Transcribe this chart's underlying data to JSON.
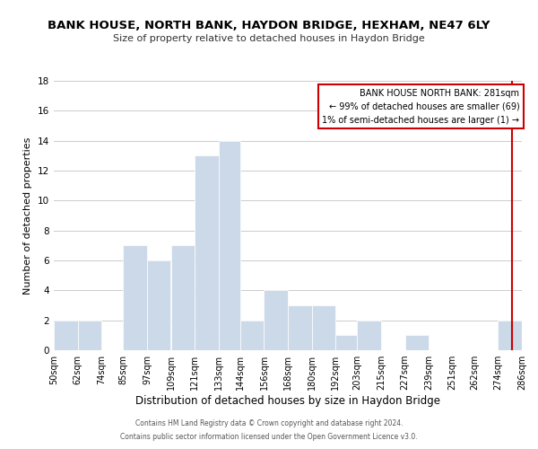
{
  "title": "BANK HOUSE, NORTH BANK, HAYDON BRIDGE, HEXHAM, NE47 6LY",
  "subtitle": "Size of property relative to detached houses in Haydon Bridge",
  "xlabel": "Distribution of detached houses by size in Haydon Bridge",
  "ylabel": "Number of detached properties",
  "bar_color": "#ccd9e8",
  "bar_edge_color": "#ffffff",
  "grid_color": "#cccccc",
  "background_color": "#ffffff",
  "annotation_box_color": "#cc0000",
  "property_line_color": "#cc0000",
  "footer_line1": "Contains HM Land Registry data © Crown copyright and database right 2024.",
  "footer_line2": "Contains public sector information licensed under the Open Government Licence v3.0.",
  "legend_title": "BANK HOUSE NORTH BANK: 281sqm",
  "legend_line1": "← 99% of detached houses are smaller (69)",
  "legend_line2": "1% of semi-detached houses are larger (1) →",
  "bin_edges": [
    50,
    62,
    74,
    85,
    97,
    109,
    121,
    133,
    144,
    156,
    168,
    180,
    192,
    203,
    215,
    227,
    239,
    251,
    262,
    274,
    286
  ],
  "bar_heights": [
    2,
    2,
    0,
    7,
    6,
    7,
    13,
    14,
    2,
    4,
    3,
    3,
    1,
    2,
    0,
    1,
    0,
    0,
    0,
    2
  ],
  "property_size": 281,
  "ylim": [
    0,
    18
  ],
  "yticks": [
    0,
    2,
    4,
    6,
    8,
    10,
    12,
    14,
    16,
    18
  ],
  "title_fontsize": 9.5,
  "subtitle_fontsize": 8,
  "xlabel_fontsize": 8.5,
  "ylabel_fontsize": 8,
  "tick_fontsize": 7,
  "legend_fontsize": 7,
  "footer_fontsize": 5.5
}
